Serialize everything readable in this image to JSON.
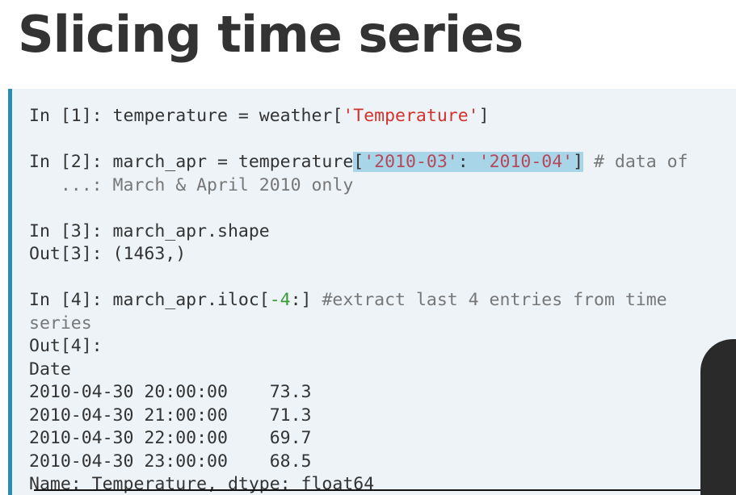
{
  "title": "Slicing time series",
  "code": {
    "highlight_color": "#a9d5e8",
    "lines": [
      [
        {
          "text": "In [1]: temperature = weather[",
          "color": "#333333"
        },
        {
          "text": "'Temperature'",
          "color": "#d2322d"
        },
        {
          "text": "]",
          "color": "#333333"
        }
      ],
      [],
      [
        {
          "text": "In [2]: march_apr = temperature",
          "color": "#333333"
        },
        {
          "text": "[",
          "color": "#333333",
          "highlight": true
        },
        {
          "text": "'2010-03'",
          "color": "#b5485a",
          "highlight": true
        },
        {
          "text": ": ",
          "color": "#333333",
          "highlight": true
        },
        {
          "text": "'2010-04'",
          "color": "#b5485a",
          "highlight": true
        },
        {
          "text": "]",
          "color": "#333333",
          "highlight": true
        },
        {
          "text": " # data of",
          "color": "#777777"
        }
      ],
      [
        {
          "text": "   ...: March & April 2010 only",
          "color": "#777777"
        }
      ],
      [],
      [
        {
          "text": "In [3]: march_apr.shape",
          "color": "#333333"
        }
      ],
      [
        {
          "text": "Out[3]: (1463,)",
          "color": "#333333"
        }
      ],
      [],
      [
        {
          "text": "In [4]: march_apr.iloc[",
          "color": "#333333"
        },
        {
          "text": "-4",
          "color": "#3a9a3a"
        },
        {
          "text": ":] ",
          "color": "#333333"
        },
        {
          "text": "#extract last 4 entries from time",
          "color": "#777777"
        }
      ],
      [
        {
          "text": "series",
          "color": "#777777"
        }
      ],
      [
        {
          "text": "Out[4]:",
          "color": "#333333"
        }
      ],
      [
        {
          "text": "Date",
          "color": "#333333"
        }
      ],
      [
        {
          "text": "2010-04-30 20:00:00    73.3",
          "color": "#333333"
        }
      ],
      [
        {
          "text": "2010-04-30 21:00:00    71.3",
          "color": "#333333"
        }
      ],
      [
        {
          "text": "2010-04-30 22:00:00    69.7",
          "color": "#333333"
        }
      ],
      [
        {
          "text": "2010-04-30 23:00:00    68.5",
          "color": "#333333"
        }
      ],
      [
        {
          "text": "Name: Temperature, dtype: float64",
          "color": "#333333"
        }
      ]
    ]
  }
}
